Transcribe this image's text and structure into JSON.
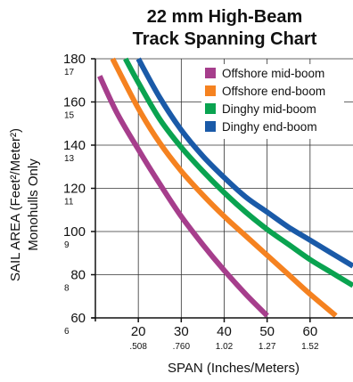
{
  "chart_data": {
    "type": "line",
    "title_line1": "22 mm High-Beam",
    "title_line2": "Track Spanning Chart",
    "xlabel": "SPAN (Inches/Meters)",
    "ylabel_line1": "SAIL AREA (Feet²/Meter²)",
    "ylabel_line2": "Monohulls Only",
    "xlim": [
      10,
      70
    ],
    "ylim": [
      60,
      180
    ],
    "x_ticks": [
      {
        "value": 20,
        "label": "20",
        "sublabel": ".508"
      },
      {
        "value": 30,
        "label": "30",
        "sublabel": ".760"
      },
      {
        "value": 40,
        "label": "40",
        "sublabel": "1.02"
      },
      {
        "value": 50,
        "label": "50",
        "sublabel": "1.27"
      },
      {
        "value": 60,
        "label": "60",
        "sublabel": "1.52"
      }
    ],
    "y_ticks": [
      {
        "value": 60,
        "label": "60",
        "sublabel": "6"
      },
      {
        "value": 80,
        "label": "80",
        "sublabel": "8"
      },
      {
        "value": 100,
        "label": "100",
        "sublabel": "9"
      },
      {
        "value": 120,
        "label": "120",
        "sublabel": "11"
      },
      {
        "value": 140,
        "label": "140",
        "sublabel": "13"
      },
      {
        "value": 160,
        "label": "160",
        "sublabel": "15"
      },
      {
        "value": 180,
        "label": "180",
        "sublabel": "17"
      }
    ],
    "legend_position": "top-right",
    "grid": true,
    "series": [
      {
        "name": "Offshore mid-boom",
        "color": "#a63e8c",
        "x": [
          11,
          15,
          20,
          25,
          30,
          35,
          40,
          45,
          50
        ],
        "y": [
          172,
          155,
          138,
          122,
          107,
          94,
          82,
          71,
          61
        ]
      },
      {
        "name": "Offshore end-boom",
        "color": "#f58220",
        "x": [
          14,
          20,
          25,
          30,
          35,
          40,
          45,
          50,
          55,
          60,
          66
        ],
        "y": [
          180,
          157,
          141,
          128,
          117,
          107,
          98,
          89,
          80,
          71,
          61
        ]
      },
      {
        "name": "Dinghy mid-boom",
        "color": "#0aa350",
        "x": [
          17,
          20,
          25,
          30,
          35,
          40,
          45,
          50,
          55,
          60,
          65,
          70
        ],
        "y": [
          180,
          169,
          152,
          139,
          128,
          118,
          109,
          101,
          94,
          87,
          81,
          75
        ]
      },
      {
        "name": "Dinghy end-boom",
        "color": "#1a5aa8",
        "x": [
          20,
          25,
          30,
          35,
          40,
          45,
          50,
          55,
          60,
          65,
          70
        ],
        "y": [
          180,
          162,
          147,
          135,
          125,
          116,
          109,
          102,
          96,
          90,
          84
        ]
      }
    ]
  }
}
